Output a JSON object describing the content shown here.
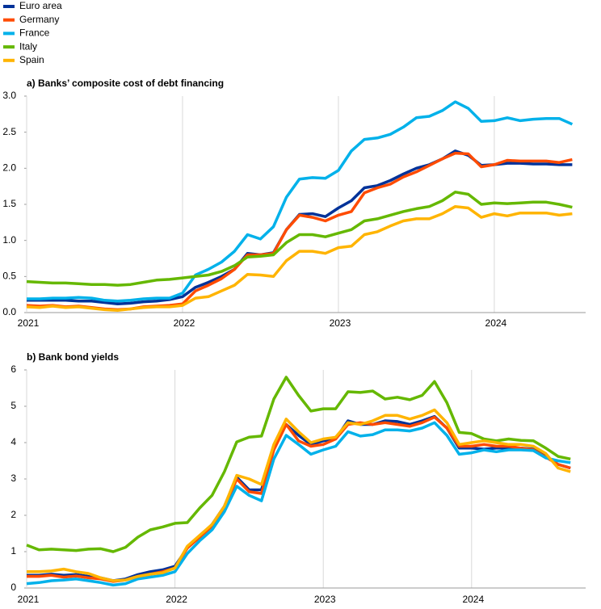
{
  "chart_data": [
    {
      "type": "line",
      "title": "a) Banks’ composite cost of debt financing",
      "legend": "top-left",
      "grid": "x",
      "categories": [
        "2021",
        null,
        null,
        null,
        null,
        null,
        null,
        null,
        null,
        null,
        null,
        null,
        "2022",
        null,
        null,
        null,
        null,
        null,
        null,
        null,
        null,
        null,
        null,
        null,
        "2023",
        null,
        null,
        null,
        null,
        null,
        null,
        null,
        null,
        null,
        null,
        null,
        "2024",
        null,
        null,
        null,
        null,
        null,
        null
      ],
      "ylim": [
        0,
        3
      ],
      "yticks": [
        {
          "value": 0,
          "label": "0.0"
        },
        0.5,
        {
          "value": 1,
          "label": "1.0"
        },
        1.5,
        {
          "value": 2,
          "label": "2.0"
        },
        2.5,
        {
          "value": 3,
          "label": "3.0"
        }
      ],
      "series": [
        {
          "name": "Euro area",
          "color": "#003299",
          "values": [
            0.17,
            0.17,
            0.17,
            0.17,
            0.16,
            0.16,
            0.14,
            0.12,
            0.13,
            0.15,
            0.16,
            0.18,
            0.22,
            0.35,
            0.42,
            0.5,
            0.6,
            0.82,
            0.8,
            0.83,
            1.15,
            1.36,
            1.37,
            1.33,
            1.45,
            1.55,
            1.73,
            1.76,
            1.83,
            1.92,
            2.0,
            2.05,
            2.13,
            2.24,
            2.18,
            2.04,
            2.05,
            2.07,
            2.07,
            2.06,
            2.06,
            2.05,
            2.05
          ]
        },
        {
          "name": "Germany",
          "color": "#ff4b00",
          "values": [
            0.1,
            0.09,
            0.1,
            0.08,
            0.09,
            0.07,
            0.05,
            0.04,
            0.05,
            0.08,
            0.09,
            0.1,
            0.12,
            0.3,
            0.38,
            0.47,
            0.6,
            0.8,
            0.8,
            0.82,
            1.15,
            1.35,
            1.32,
            1.27,
            1.35,
            1.4,
            1.66,
            1.73,
            1.78,
            1.88,
            1.95,
            2.04,
            2.13,
            2.21,
            2.2,
            2.02,
            2.05,
            2.11,
            2.1,
            2.1,
            2.1,
            2.08,
            2.12
          ]
        },
        {
          "name": "France",
          "color": "#00b1ea",
          "values": [
            0.19,
            0.19,
            0.2,
            0.2,
            0.21,
            0.2,
            0.17,
            0.16,
            0.17,
            0.19,
            0.2,
            0.2,
            0.27,
            0.52,
            0.6,
            0.7,
            0.85,
            1.08,
            1.02,
            1.19,
            1.6,
            1.85,
            1.87,
            1.86,
            1.97,
            2.24,
            2.4,
            2.42,
            2.47,
            2.57,
            2.7,
            2.72,
            2.8,
            2.92,
            2.83,
            2.65,
            2.66,
            2.7,
            2.66,
            2.68,
            2.69,
            2.69,
            2.61
          ]
        },
        {
          "name": "Italy",
          "color": "#65b800",
          "values": [
            0.43,
            0.42,
            0.41,
            0.41,
            0.4,
            0.39,
            0.39,
            0.38,
            0.39,
            0.42,
            0.45,
            0.46,
            0.48,
            0.5,
            0.52,
            0.57,
            0.65,
            0.77,
            0.78,
            0.8,
            0.97,
            1.08,
            1.08,
            1.05,
            1.1,
            1.15,
            1.27,
            1.3,
            1.35,
            1.4,
            1.44,
            1.47,
            1.55,
            1.67,
            1.64,
            1.5,
            1.52,
            1.51,
            1.52,
            1.53,
            1.53,
            1.5,
            1.46
          ]
        },
        {
          "name": "Spain",
          "color": "#ffb400",
          "values": [
            0.08,
            0.07,
            0.09,
            0.07,
            0.08,
            0.06,
            0.04,
            0.03,
            0.05,
            0.07,
            0.08,
            0.08,
            0.1,
            0.2,
            0.22,
            0.3,
            0.38,
            0.53,
            0.52,
            0.5,
            0.72,
            0.85,
            0.85,
            0.82,
            0.9,
            0.92,
            1.08,
            1.12,
            1.2,
            1.27,
            1.3,
            1.3,
            1.37,
            1.47,
            1.45,
            1.32,
            1.37,
            1.34,
            1.38,
            1.38,
            1.38,
            1.35,
            1.37
          ]
        }
      ]
    },
    {
      "type": "line",
      "title": "b) Bank bond yields",
      "grid": "x",
      "categories": [
        "2021",
        null,
        null,
        null,
        null,
        null,
        null,
        null,
        null,
        null,
        null,
        null,
        "2022",
        null,
        null,
        null,
        null,
        null,
        null,
        null,
        null,
        null,
        null,
        null,
        "2023",
        null,
        null,
        null,
        null,
        null,
        null,
        null,
        null,
        null,
        null,
        null,
        "2024",
        null,
        null,
        null,
        null,
        null,
        null,
        null,
        null
      ],
      "ylim": [
        0,
        6
      ],
      "yticks": [
        0,
        1,
        2,
        3,
        4,
        5,
        6
      ],
      "series": [
        {
          "color": "#003299",
          "values": [
            0.35,
            0.35,
            0.38,
            0.35,
            0.37,
            0.32,
            0.28,
            0.2,
            0.25,
            0.37,
            0.45,
            0.5,
            0.6,
            1.1,
            1.4,
            1.75,
            2.25,
            3.05,
            2.7,
            2.7,
            3.9,
            4.5,
            4.2,
            3.95,
            4.05,
            4.1,
            4.6,
            4.5,
            4.5,
            4.6,
            4.58,
            4.5,
            4.6,
            4.72,
            4.4,
            3.85,
            3.85,
            3.82,
            3.85,
            3.85,
            3.85,
            3.82,
            3.62,
            3.4,
            3.3
          ]
        },
        {
          "color": "#ff4b00",
          "values": [
            0.32,
            0.32,
            0.35,
            0.3,
            0.33,
            0.28,
            0.25,
            0.18,
            0.22,
            0.32,
            0.38,
            0.45,
            0.55,
            1.1,
            1.4,
            1.7,
            2.2,
            3.0,
            2.65,
            2.6,
            3.8,
            4.5,
            4.05,
            3.9,
            3.95,
            4.1,
            4.5,
            4.55,
            4.5,
            4.55,
            4.5,
            4.45,
            4.55,
            4.7,
            4.4,
            3.9,
            3.9,
            3.95,
            3.9,
            3.9,
            3.85,
            3.8,
            3.6,
            3.4,
            3.3
          ]
        },
        {
          "color": "#00b1ea",
          "values": [
            0.12,
            0.15,
            0.2,
            0.22,
            0.25,
            0.2,
            0.15,
            0.08,
            0.12,
            0.25,
            0.3,
            0.35,
            0.45,
            0.95,
            1.3,
            1.6,
            2.1,
            2.8,
            2.55,
            2.4,
            3.55,
            4.2,
            3.95,
            3.68,
            3.8,
            3.9,
            4.3,
            4.18,
            4.22,
            4.35,
            4.35,
            4.32,
            4.4,
            4.55,
            4.2,
            3.68,
            3.72,
            3.8,
            3.75,
            3.8,
            3.8,
            3.78,
            3.58,
            3.5,
            3.45
          ]
        },
        {
          "color": "#65b800",
          "values": [
            1.18,
            1.05,
            1.07,
            1.05,
            1.03,
            1.07,
            1.08,
            1.0,
            1.12,
            1.4,
            1.6,
            1.68,
            1.78,
            1.8,
            2.2,
            2.55,
            3.2,
            4.02,
            4.15,
            4.18,
            5.2,
            5.8,
            5.3,
            4.87,
            4.93,
            4.93,
            5.4,
            5.38,
            5.42,
            5.2,
            5.25,
            5.18,
            5.3,
            5.68,
            5.1,
            4.28,
            4.25,
            4.1,
            4.05,
            4.1,
            4.06,
            4.05,
            3.85,
            3.62,
            3.55
          ]
        },
        {
          "color": "#ffb400",
          "values": [
            0.45,
            0.45,
            0.47,
            0.52,
            0.45,
            0.4,
            0.28,
            0.2,
            0.22,
            0.32,
            0.38,
            0.42,
            0.55,
            1.15,
            1.45,
            1.75,
            2.25,
            3.1,
            3.0,
            2.85,
            3.95,
            4.65,
            4.3,
            4.0,
            4.1,
            4.15,
            4.55,
            4.5,
            4.6,
            4.75,
            4.75,
            4.65,
            4.75,
            4.9,
            4.55,
            3.95,
            4.0,
            4.05,
            4.0,
            3.95,
            3.95,
            3.9,
            3.7,
            3.3,
            3.2
          ]
        }
      ]
    }
  ]
}
